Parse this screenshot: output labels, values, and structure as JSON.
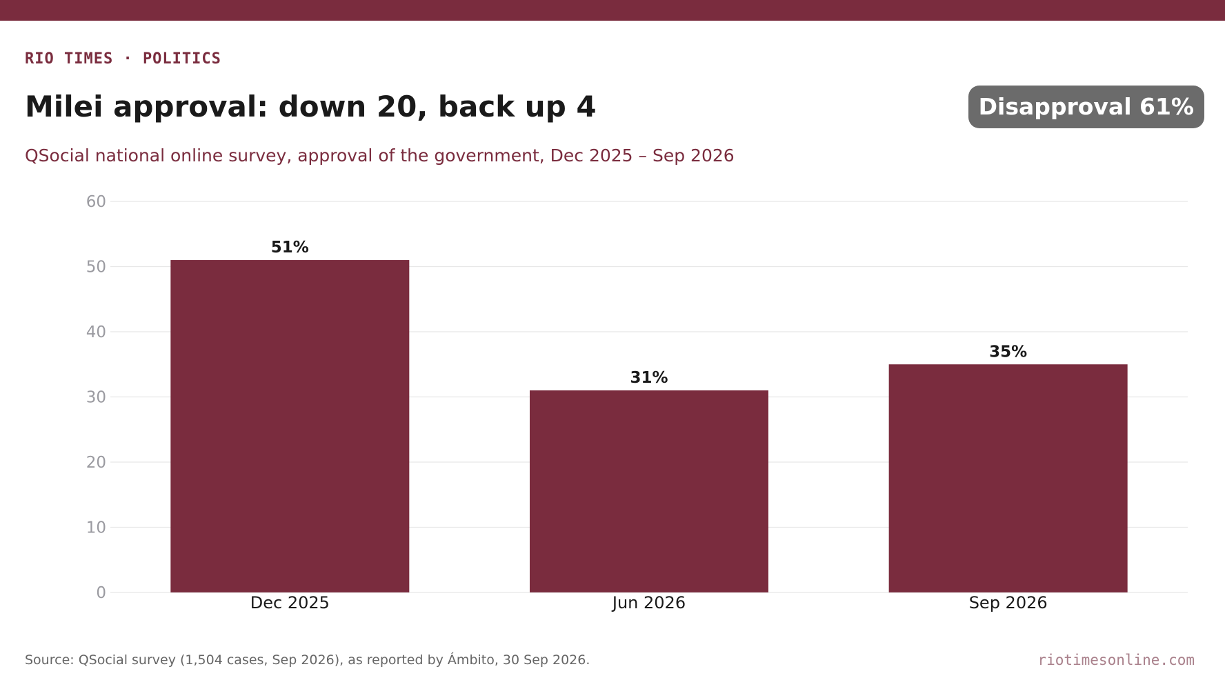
{
  "header": {
    "kicker": "RIO TIMES · POLITICS",
    "title": "Milei approval: down 20, back up 4",
    "subtitle": "QSocial national online survey, approval of the government, Dec 2025 – Sep 2026",
    "badge": "Disapproval 61%"
  },
  "footer": {
    "source": "Source: QSocial survey (1,504 cases, Sep 2026), as reported by Ámbito, 30 Sep 2026.",
    "site": "riotimesonline.com"
  },
  "colors": {
    "brand": "#7a2c3e",
    "badge": "#6b6b6b",
    "grid": "#e8e8e8",
    "tick": "#9a9aa0",
    "label": "#1a1a1a"
  },
  "chart_data": {
    "type": "bar",
    "categories": [
      "Dec 2025",
      "Jun 2026",
      "Sep 2026"
    ],
    "values": [
      51,
      31,
      35
    ],
    "data_labels": [
      "51%",
      "31%",
      "35%"
    ],
    "ylim": [
      0,
      60
    ],
    "yticks": [
      0,
      10,
      20,
      30,
      40,
      50,
      60
    ],
    "grid": true,
    "legend": "none"
  }
}
